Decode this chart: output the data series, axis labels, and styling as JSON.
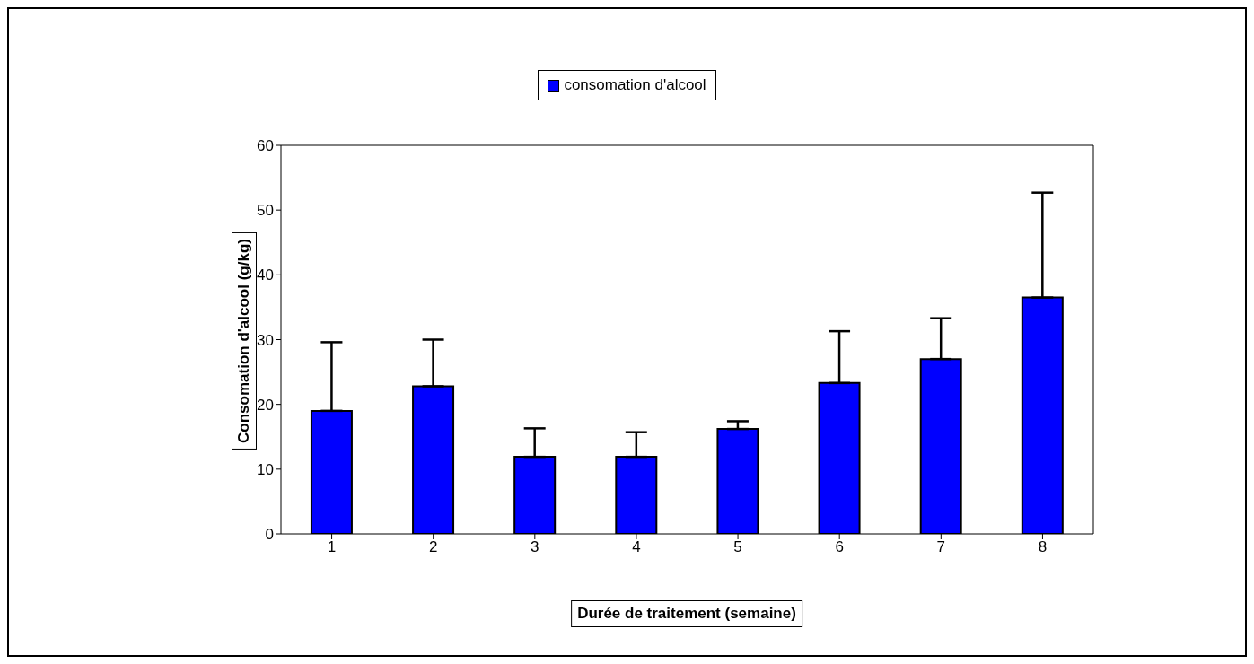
{
  "chart_data": {
    "type": "bar",
    "xlabel": "Durée de traitement (semaine)",
    "ylabel": "Consomation d'alcool (g/kg)",
    "categories": [
      "1",
      "2",
      "3",
      "4",
      "5",
      "6",
      "7",
      "8"
    ],
    "series": [
      {
        "name": "consomation d'alcool",
        "color": "#0000ff",
        "values": [
          19.0,
          22.8,
          11.9,
          11.9,
          16.2,
          23.3,
          27.0,
          36.5
        ],
        "errors": [
          [
            19.0,
            29.6
          ],
          [
            22.8,
            30.0
          ],
          [
            11.9,
            16.3
          ],
          [
            11.9,
            15.7
          ],
          [
            16.2,
            17.4
          ],
          [
            23.3,
            31.3
          ],
          [
            27.0,
            33.3
          ],
          [
            36.5,
            52.7
          ]
        ]
      }
    ],
    "ylim": [
      0,
      60
    ],
    "yticks": [
      0,
      10,
      20,
      30,
      40,
      50,
      60
    ],
    "grid": false,
    "legend": "top"
  }
}
